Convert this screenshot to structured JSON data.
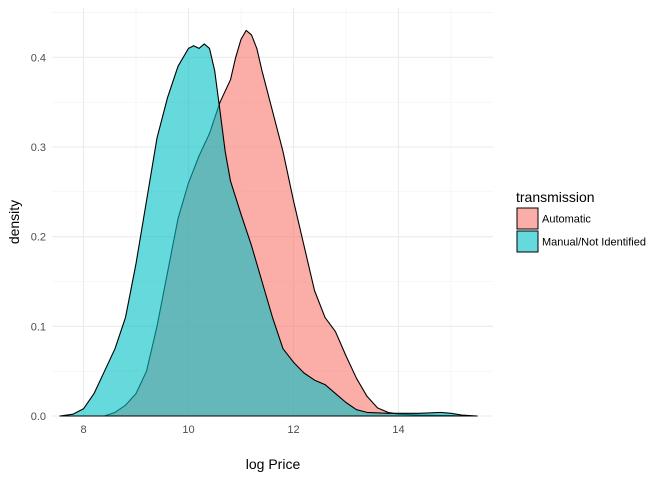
{
  "chart_data": {
    "type": "area",
    "subtype": "density",
    "xlabel": "log Price",
    "ylabel": "density",
    "xlim": [
      7.4,
      15.8
    ],
    "ylim": [
      0,
      0.455
    ],
    "x_ticks": [
      8,
      10,
      12,
      14
    ],
    "y_ticks": [
      0.0,
      0.1,
      0.2,
      0.3,
      0.4
    ],
    "x_tick_labels": [
      "8",
      "10",
      "12",
      "14"
    ],
    "y_tick_labels": [
      "0.0",
      "0.1",
      "0.2",
      "0.3",
      "0.4"
    ],
    "grid": true,
    "legend": {
      "title": "transmission",
      "position": "right"
    },
    "series": [
      {
        "name": "Automatic",
        "color": "#F8766D",
        "points": [
          [
            8.4,
            0
          ],
          [
            8.6,
            0.004
          ],
          [
            8.8,
            0.012
          ],
          [
            9.0,
            0.025
          ],
          [
            9.2,
            0.05
          ],
          [
            9.4,
            0.1
          ],
          [
            9.6,
            0.16
          ],
          [
            9.8,
            0.22
          ],
          [
            10.0,
            0.26
          ],
          [
            10.2,
            0.29
          ],
          [
            10.4,
            0.315
          ],
          [
            10.6,
            0.35
          ],
          [
            10.8,
            0.375
          ],
          [
            10.9,
            0.4
          ],
          [
            11.0,
            0.42
          ],
          [
            11.1,
            0.43
          ],
          [
            11.2,
            0.425
          ],
          [
            11.3,
            0.41
          ],
          [
            11.4,
            0.385
          ],
          [
            11.6,
            0.34
          ],
          [
            11.8,
            0.295
          ],
          [
            12.0,
            0.24
          ],
          [
            12.2,
            0.19
          ],
          [
            12.4,
            0.14
          ],
          [
            12.6,
            0.11
          ],
          [
            12.8,
            0.094
          ],
          [
            13.0,
            0.067
          ],
          [
            13.2,
            0.042
          ],
          [
            13.4,
            0.022
          ],
          [
            13.6,
            0.009
          ],
          [
            13.8,
            0.004
          ],
          [
            14.0,
            0.002
          ],
          [
            14.4,
            0.001
          ],
          [
            15.0,
            0.0005
          ],
          [
            15.2,
            0
          ]
        ]
      },
      {
        "name": "Manual/Not Identified",
        "color": "#00BFC4",
        "points": [
          [
            7.55,
            0
          ],
          [
            7.8,
            0.002
          ],
          [
            8.0,
            0.008
          ],
          [
            8.2,
            0.025
          ],
          [
            8.4,
            0.05
          ],
          [
            8.6,
            0.075
          ],
          [
            8.8,
            0.11
          ],
          [
            9.0,
            0.17
          ],
          [
            9.2,
            0.24
          ],
          [
            9.4,
            0.31
          ],
          [
            9.6,
            0.355
          ],
          [
            9.8,
            0.39
          ],
          [
            10.0,
            0.41
          ],
          [
            10.1,
            0.413
          ],
          [
            10.2,
            0.41
          ],
          [
            10.3,
            0.415
          ],
          [
            10.4,
            0.41
          ],
          [
            10.5,
            0.385
          ],
          [
            10.6,
            0.34
          ],
          [
            10.7,
            0.295
          ],
          [
            10.8,
            0.262
          ],
          [
            11.0,
            0.225
          ],
          [
            11.2,
            0.19
          ],
          [
            11.4,
            0.15
          ],
          [
            11.6,
            0.11
          ],
          [
            11.8,
            0.075
          ],
          [
            12.0,
            0.06
          ],
          [
            12.2,
            0.048
          ],
          [
            12.4,
            0.04
          ],
          [
            12.6,
            0.035
          ],
          [
            12.8,
            0.025
          ],
          [
            13.0,
            0.015
          ],
          [
            13.2,
            0.007
          ],
          [
            13.4,
            0.004
          ],
          [
            13.8,
            0.003
          ],
          [
            14.0,
            0.003
          ],
          [
            14.4,
            0.003
          ],
          [
            14.8,
            0.004
          ],
          [
            15.0,
            0.003
          ],
          [
            15.2,
            0.001
          ],
          [
            15.5,
            0
          ]
        ]
      }
    ]
  }
}
